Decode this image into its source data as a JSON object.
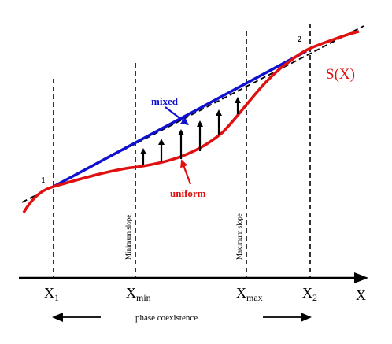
{
  "curve_label": "S(X)",
  "axis_label": "X",
  "labels": {
    "mixed": "mixed",
    "uniform": "uniform",
    "point1": "1",
    "point2": "2",
    "min_slope": "Minimum slope",
    "max_slope": "Maximum slope",
    "phase_coexistence": "phase coexistence"
  },
  "ticks": {
    "x1": {
      "base": "X",
      "sub": "1"
    },
    "xmin": {
      "base": "X",
      "sub": "min"
    },
    "xmax": {
      "base": "X",
      "sub": "max"
    },
    "x2": {
      "base": "X",
      "sub": "2"
    }
  },
  "colors": {
    "uniform": "#e01010",
    "mixed": "#1010d0",
    "ink": "#000000"
  }
}
